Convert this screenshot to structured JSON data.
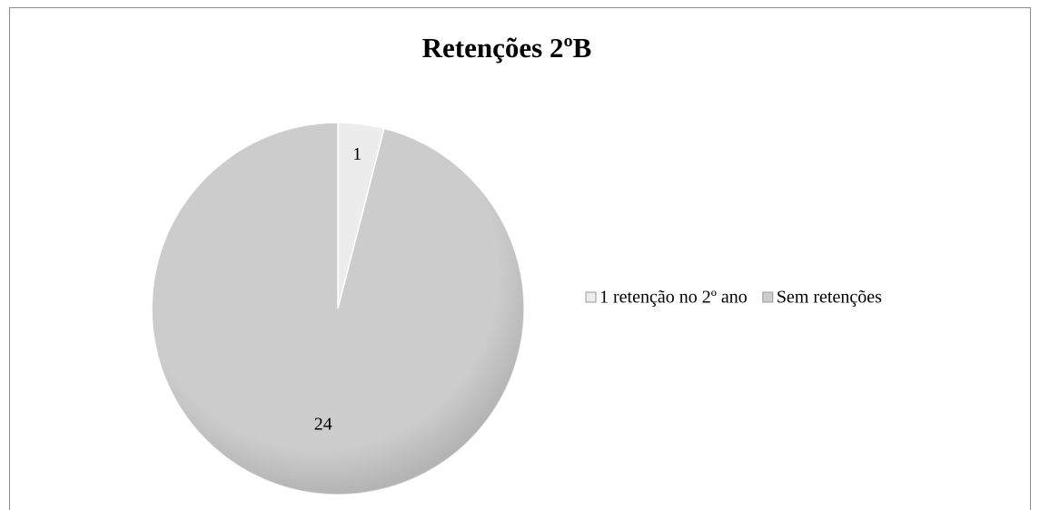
{
  "chart_data": {
    "type": "pie",
    "title": "Retenções 2ºB",
    "categories": [
      "1 retenção no 2º ano",
      "Sem retenções"
    ],
    "values": [
      1,
      24
    ],
    "colors": [
      "#ececec",
      "#cccccc"
    ],
    "legend": "right"
  }
}
